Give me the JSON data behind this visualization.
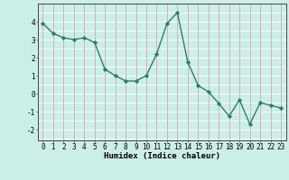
{
  "x": [
    0,
    1,
    2,
    3,
    4,
    5,
    6,
    7,
    8,
    9,
    10,
    11,
    12,
    13,
    14,
    15,
    16,
    17,
    18,
    19,
    20,
    21,
    22,
    23
  ],
  "y": [
    3.9,
    3.35,
    3.1,
    3.0,
    3.1,
    2.85,
    1.35,
    1.0,
    0.7,
    0.7,
    1.0,
    2.2,
    3.9,
    4.5,
    1.75,
    0.45,
    0.1,
    -0.55,
    -1.25,
    -0.35,
    -1.7,
    -0.5,
    -0.65,
    -0.8
  ],
  "line_color": "#2e7d6e",
  "marker": "D",
  "marker_size": 2.2,
  "linewidth": 1.0,
  "xlabel": "Humidex (Indice chaleur)",
  "xlabel_fontsize": 6.5,
  "bg_color": "#cceee8",
  "vgrid_color": "#d4a8a8",
  "hgrid_color": "#ffffff",
  "xlim": [
    -0.5,
    23.5
  ],
  "ylim": [
    -2.6,
    5.0
  ],
  "yticks": [
    -2,
    -1,
    0,
    1,
    2,
    3,
    4
  ],
  "xticks": [
    0,
    1,
    2,
    3,
    4,
    5,
    6,
    7,
    8,
    9,
    10,
    11,
    12,
    13,
    14,
    15,
    16,
    17,
    18,
    19,
    20,
    21,
    22,
    23
  ],
  "tick_fontsize": 5.5,
  "spine_color": "#444444"
}
